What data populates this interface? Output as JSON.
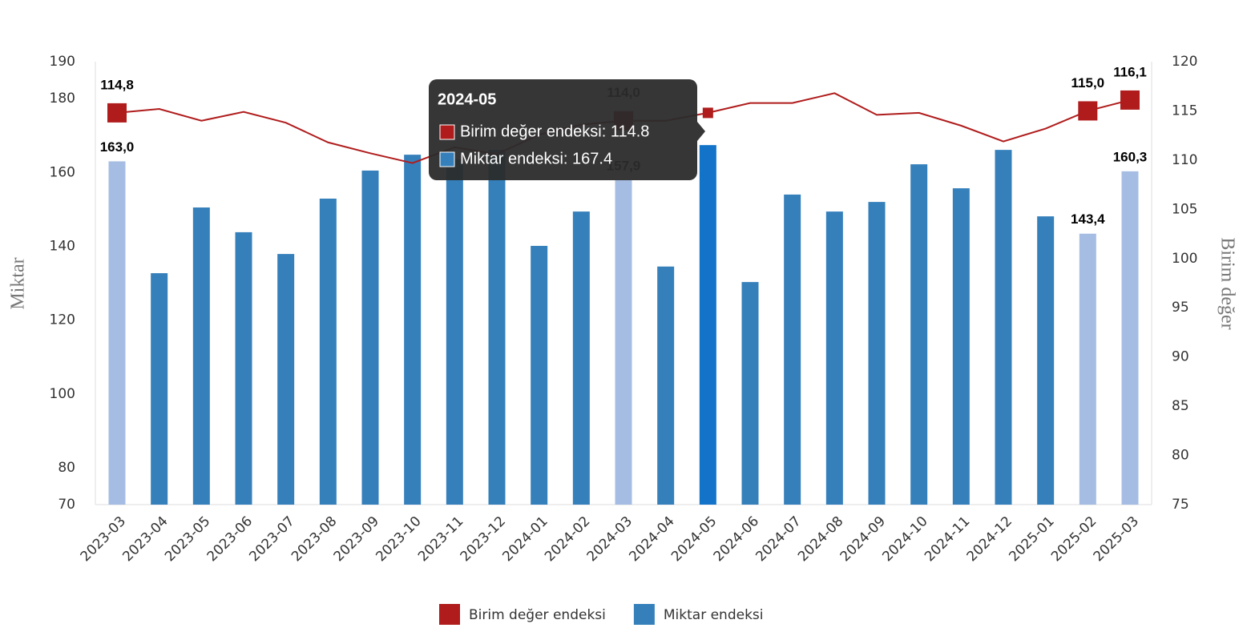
{
  "chart_data": {
    "type": "bar_line",
    "categories": [
      "2023-03",
      "2023-04",
      "2023-05",
      "2023-06",
      "2023-07",
      "2023-08",
      "2023-09",
      "2023-10",
      "2023-11",
      "2023-12",
      "2024-01",
      "2024-02",
      "2024-03",
      "2024-04",
      "2024-05",
      "2024-06",
      "2024-07",
      "2024-08",
      "2024-09",
      "2024-10",
      "2024-11",
      "2024-12",
      "2025-01",
      "2025-02",
      "2025-03"
    ],
    "y_label": "Miktar",
    "y2_label": "Birim değer",
    "ylim": [
      70,
      190
    ],
    "yticks": [
      70,
      80,
      100,
      120,
      140,
      160,
      180,
      190
    ],
    "y2lim": [
      75,
      120
    ],
    "y2ticks": [
      75,
      80,
      85,
      90,
      95,
      100,
      105,
      110,
      115,
      120
    ],
    "series": [
      {
        "name": "Birim değer endeksi",
        "type": "line",
        "axis": "y2",
        "color": "#b01c1c",
        "values": [
          114.8,
          115.2,
          114.0,
          114.9,
          113.8,
          111.8,
          110.7,
          109.7,
          111.3,
          110.6,
          112.6,
          113.6,
          114.0,
          114.0,
          114.8,
          115.8,
          115.8,
          116.8,
          114.6,
          114.8,
          113.5,
          111.9,
          113.2,
          115.0,
          116.1
        ],
        "value_labels": [
          "114,8",
          null,
          null,
          null,
          null,
          null,
          null,
          null,
          null,
          null,
          null,
          null,
          "114,0",
          null,
          null,
          null,
          null,
          null,
          null,
          null,
          null,
          null,
          null,
          "115,0",
          "116,1"
        ]
      },
      {
        "name": "Miktar endeksi",
        "type": "bar",
        "axis": "y",
        "color": "#3580bb",
        "colors": [
          "#a6bde3",
          "#3580bb",
          "#3580bb",
          "#3580bb",
          "#3580bb",
          "#3580bb",
          "#3580bb",
          "#3580bb",
          "#3580bb",
          "#3580bb",
          "#3580bb",
          "#3580bb",
          "#a6bde3",
          "#3580bb",
          "#1273c8",
          "#3580bb",
          "#3580bb",
          "#3580bb",
          "#3580bb",
          "#3580bb",
          "#3580bb",
          "#3580bb",
          "#3580bb",
          "#a6bde3",
          "#a6bde3"
        ],
        "values": [
          163.0,
          132.7,
          150.5,
          143.8,
          137.9,
          152.9,
          160.5,
          164.8,
          163.5,
          166.1,
          140.1,
          149.4,
          157.9,
          134.5,
          167.4,
          130.3,
          154.0,
          149.4,
          152.0,
          162.2,
          155.7,
          166.1,
          148.1,
          143.4,
          160.3
        ],
        "value_labels": [
          "163,0",
          null,
          null,
          null,
          null,
          null,
          null,
          null,
          null,
          null,
          null,
          null,
          "157,9",
          null,
          null,
          null,
          null,
          null,
          null,
          null,
          null,
          null,
          null,
          "143,4",
          "160,3"
        ]
      }
    ],
    "tooltip": {
      "title": "2024-05",
      "lines": [
        "Birim değer endeksi: 114.8",
        "Miktar endeksi: 167.4"
      ]
    }
  }
}
